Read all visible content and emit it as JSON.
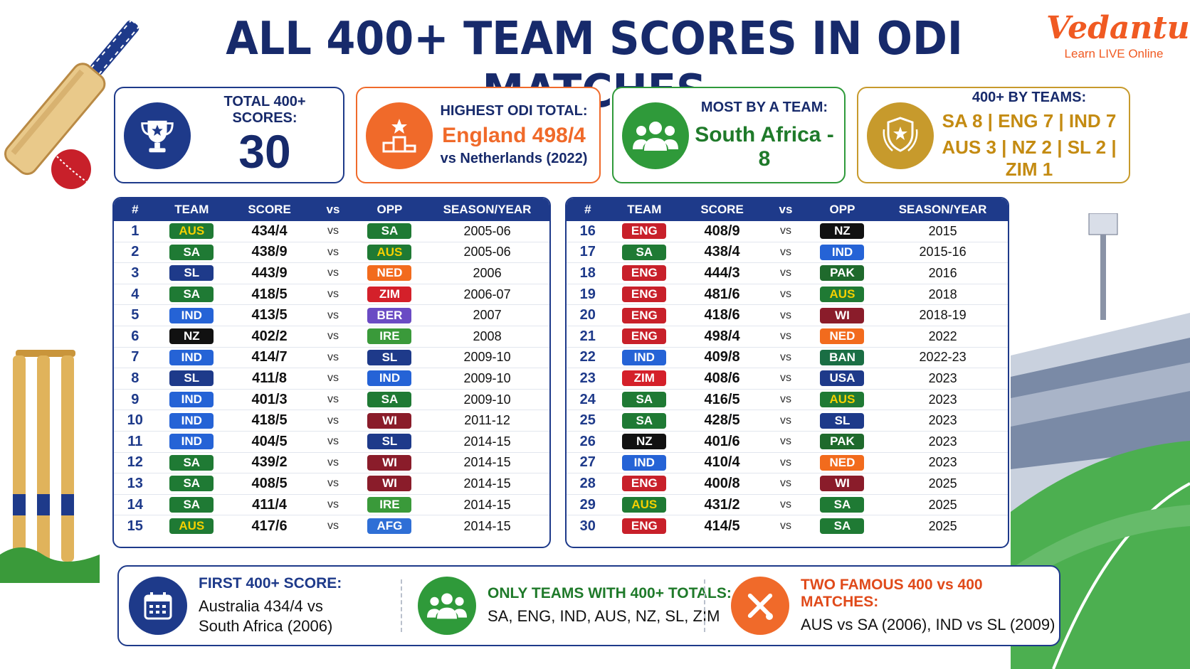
{
  "title": "ALL 400+ TEAM SCORES IN ODI MATCHES",
  "brand": {
    "name": "Vedantu",
    "tagline": "Learn LIVE Online"
  },
  "colors": {
    "navy": "#1e3a8a",
    "orange": "#f06a2a",
    "green": "#2f9a3a",
    "gold": "#c79a2c"
  },
  "cards": {
    "total": {
      "icon": "trophy-icon",
      "label": "TOTAL 400+ SCORES:",
      "value": "30"
    },
    "highest": {
      "icon": "podium-icon",
      "label": "HIGHEST ODI TOTAL:",
      "value": "England 498/4",
      "sub": "vs Netherlands (2022)"
    },
    "most": {
      "icon": "team-icon",
      "label": "MOST BY A TEAM:",
      "value": "South Africa - 8"
    },
    "byteams": {
      "icon": "shield-star-icon",
      "label": "400+ BY TEAMS:",
      "line1": "SA 8 | ENG 7 | IND 7",
      "line2": "AUS 3 | NZ 2 | SL 2 | ZIM 1"
    }
  },
  "table": {
    "headers": {
      "num": "#",
      "team": "TEAM",
      "score": "SCORE",
      "vs": "vs",
      "opp": "OPP",
      "season": "SEASON/YEAR"
    },
    "vs_label": "vs",
    "left": [
      {
        "n": "1",
        "team": "AUS",
        "score": "434/4",
        "opp": "SA",
        "year": "2005-06"
      },
      {
        "n": "2",
        "team": "SA",
        "score": "438/9",
        "opp": "AUS",
        "year": "2005-06"
      },
      {
        "n": "3",
        "team": "SL",
        "score": "443/9",
        "opp": "NED",
        "year": "2006"
      },
      {
        "n": "4",
        "team": "SA",
        "score": "418/5",
        "opp": "ZIM",
        "year": "2006-07"
      },
      {
        "n": "5",
        "team": "IND",
        "score": "413/5",
        "opp": "BER",
        "year": "2007"
      },
      {
        "n": "6",
        "team": "NZ",
        "score": "402/2",
        "opp": "IRE",
        "year": "2008"
      },
      {
        "n": "7",
        "team": "IND",
        "score": "414/7",
        "opp": "SL",
        "year": "2009-10"
      },
      {
        "n": "8",
        "team": "SL",
        "score": "411/8",
        "opp": "IND",
        "year": "2009-10"
      },
      {
        "n": "9",
        "team": "IND",
        "score": "401/3",
        "opp": "SA",
        "year": "2009-10"
      },
      {
        "n": "10",
        "team": "IND",
        "score": "418/5",
        "opp": "WI",
        "year": "2011-12"
      },
      {
        "n": "11",
        "team": "IND",
        "score": "404/5",
        "opp": "SL",
        "year": "2014-15"
      },
      {
        "n": "12",
        "team": "SA",
        "score": "439/2",
        "opp": "WI",
        "year": "2014-15"
      },
      {
        "n": "13",
        "team": "SA",
        "score": "408/5",
        "opp": "WI",
        "year": "2014-15"
      },
      {
        "n": "14",
        "team": "SA",
        "score": "411/4",
        "opp": "IRE",
        "year": "2014-15"
      },
      {
        "n": "15",
        "team": "AUS",
        "score": "417/6",
        "opp": "AFG",
        "year": "2014-15"
      }
    ],
    "right": [
      {
        "n": "16",
        "team": "ENG",
        "score": "408/9",
        "opp": "NZ",
        "year": "2015"
      },
      {
        "n": "17",
        "team": "SA",
        "score": "438/4",
        "opp": "IND",
        "year": "2015-16"
      },
      {
        "n": "18",
        "team": "ENG",
        "score": "444/3",
        "opp": "PAK",
        "year": "2016"
      },
      {
        "n": "19",
        "team": "ENG",
        "score": "481/6",
        "opp": "AUS",
        "year": "2018"
      },
      {
        "n": "20",
        "team": "ENG",
        "score": "418/6",
        "opp": "WI",
        "year": "2018-19"
      },
      {
        "n": "21",
        "team": "ENG",
        "score": "498/4",
        "opp": "NED",
        "year": "2022"
      },
      {
        "n": "22",
        "team": "IND",
        "score": "409/8",
        "opp": "BAN",
        "year": "2022-23"
      },
      {
        "n": "23",
        "team": "ZIM",
        "score": "408/6",
        "opp": "USA",
        "year": "2023"
      },
      {
        "n": "24",
        "team": "SA",
        "score": "416/5",
        "opp": "AUS",
        "year": "2023"
      },
      {
        "n": "25",
        "team": "SA",
        "score": "428/5",
        "opp": "SL",
        "year": "2023"
      },
      {
        "n": "26",
        "team": "NZ",
        "score": "401/6",
        "opp": "PAK",
        "year": "2023"
      },
      {
        "n": "27",
        "team": "IND",
        "score": "410/4",
        "opp": "NED",
        "year": "2023"
      },
      {
        "n": "28",
        "team": "ENG",
        "score": "400/8",
        "opp": "WI",
        "year": "2025"
      },
      {
        "n": "29",
        "team": "AUS",
        "score": "431/2",
        "opp": "SA",
        "year": "2025"
      },
      {
        "n": "30",
        "team": "ENG",
        "score": "414/5",
        "opp": "SA",
        "year": "2025"
      }
    ],
    "team_colors": {
      "AUS": {
        "bg": "#1f7a34",
        "fg": "#f5d000"
      },
      "SA": {
        "bg": "#1f7a34",
        "fg": "#ffffff"
      },
      "SL": {
        "bg": "#1e3a8a",
        "fg": "#ffffff"
      },
      "IND": {
        "bg": "#2563d6",
        "fg": "#ffffff"
      },
      "NZ": {
        "bg": "#111111",
        "fg": "#ffffff"
      },
      "ENG": {
        "bg": "#c8202a",
        "fg": "#ffffff"
      },
      "ZIM": {
        "bg": "#d4202a",
        "fg": "#ffffff"
      },
      "NED": {
        "bg": "#f26b1d",
        "fg": "#ffffff"
      },
      "BER": {
        "bg": "#6a4bc4",
        "fg": "#ffffff"
      },
      "IRE": {
        "bg": "#3a9a3a",
        "fg": "#ffffff"
      },
      "WI": {
        "bg": "#8a1c2a",
        "fg": "#ffffff"
      },
      "AFG": {
        "bg": "#2f6fd6",
        "fg": "#ffffff"
      },
      "PAK": {
        "bg": "#1f6a2c",
        "fg": "#ffffff"
      },
      "BAN": {
        "bg": "#1a6e44",
        "fg": "#ffffff"
      },
      "USA": {
        "bg": "#1e3a8a",
        "fg": "#ffffff"
      }
    }
  },
  "bottom": {
    "first": {
      "icon": "calendar-icon",
      "heading": "FIRST 400+ SCORE:",
      "line1": "Australia 434/4 vs",
      "line2": "South Africa (2006)"
    },
    "only": {
      "icon": "team-icon",
      "heading": "ONLY TEAMS WITH 400+ TOTALS:",
      "body": "SA, ENG, IND, AUS, NZ, SL, ZIM"
    },
    "famous": {
      "icon": "crossed-bats-icon",
      "heading": "TWO FAMOUS 400 vs 400 MATCHES:",
      "body": "AUS vs SA (2006), IND vs SL (2009)"
    }
  }
}
